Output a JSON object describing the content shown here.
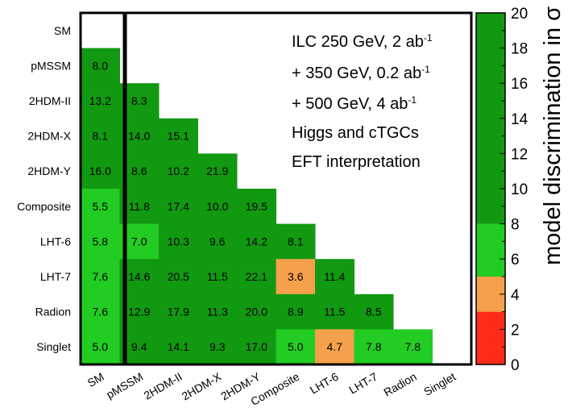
{
  "chart_data": {
    "type": "heatmap",
    "rows": [
      "SM",
      "pMSSM",
      "2HDM-II",
      "2HDM-X",
      "2HDM-Y",
      "Composite",
      "LHT-6",
      "LHT-7",
      "Radion",
      "Singlet"
    ],
    "columns": [
      "SM",
      "pMSSM",
      "2HDM-II",
      "2HDM-X",
      "2HDM-Y",
      "Composite",
      "LHT-6",
      "LHT-7",
      "Radion",
      "Singlet"
    ],
    "values": [
      [
        null,
        null,
        null,
        null,
        null,
        null,
        null,
        null,
        null,
        null
      ],
      [
        8.0,
        null,
        null,
        null,
        null,
        null,
        null,
        null,
        null,
        null
      ],
      [
        13.2,
        8.3,
        null,
        null,
        null,
        null,
        null,
        null,
        null,
        null
      ],
      [
        8.1,
        14.0,
        15.1,
        null,
        null,
        null,
        null,
        null,
        null,
        null
      ],
      [
        16.0,
        8.6,
        10.2,
        21.9,
        null,
        null,
        null,
        null,
        null,
        null
      ],
      [
        5.5,
        11.8,
        17.4,
        10.0,
        19.5,
        null,
        null,
        null,
        null,
        null
      ],
      [
        5.8,
        7.0,
        10.3,
        9.6,
        14.2,
        8.1,
        null,
        null,
        null,
        null
      ],
      [
        7.6,
        14.6,
        20.5,
        11.5,
        22.1,
        3.6,
        11.4,
        null,
        null,
        null
      ],
      [
        7.6,
        12.9,
        17.9,
        11.3,
        20.0,
        8.9,
        11.5,
        8.5,
        null,
        null
      ],
      [
        5.0,
        9.4,
        14.1,
        9.3,
        17.0,
        5.0,
        4.7,
        7.8,
        7.8,
        null
      ]
    ],
    "value_labels": [
      [
        null,
        null,
        null,
        null,
        null,
        null,
        null,
        null,
        null,
        null
      ],
      [
        "8.0",
        null,
        null,
        null,
        null,
        null,
        null,
        null,
        null,
        null
      ],
      [
        "13.2",
        "8.3",
        null,
        null,
        null,
        null,
        null,
        null,
        null,
        null
      ],
      [
        "8.1",
        "14.0",
        "15.1",
        null,
        null,
        null,
        null,
        null,
        null,
        null
      ],
      [
        "16.0",
        "8.6",
        "10.2",
        "21.9",
        null,
        null,
        null,
        null,
        null,
        null
      ],
      [
        "5.5",
        "11.8",
        "17.4",
        "10.0",
        "19.5",
        null,
        null,
        null,
        null,
        null
      ],
      [
        "5.8",
        "7.0",
        "10.3",
        "9.6",
        "14.2",
        "8.1",
        null,
        null,
        null,
        null
      ],
      [
        "7.6",
        "14.6",
        "20.5",
        "11.5",
        "22.1",
        "3.6",
        "11.4",
        null,
        null,
        null
      ],
      [
        "7.6",
        "12.9",
        "17.9",
        "11.3",
        "20.0",
        "8.9",
        "11.5",
        "8.5",
        null,
        null
      ],
      [
        "5.0",
        "9.4",
        "14.1",
        "9.3",
        "17.0",
        "5.0",
        "4.7",
        "7.8",
        "7.8",
        null
      ]
    ],
    "annotation": [
      "ILC 250 GeV, 2 ab",
      " + 350 GeV, 0.2 ab",
      " + 500 GeV,   4 ab",
      "Higgs and cTGCs",
      "EFT interpretation"
    ],
    "annotation_superscript": "-1",
    "colorbar": {
      "title": "model discrimination in σ",
      "range": [
        0,
        20
      ],
      "ticks": [
        "0",
        "2",
        "4",
        "6",
        "8",
        "10",
        "12",
        "14",
        "16",
        "18",
        "20"
      ],
      "bands": [
        {
          "from": 0,
          "to": 3,
          "color": "#ff2a1a"
        },
        {
          "from": 3,
          "to": 5,
          "color": "#f5a04a"
        },
        {
          "from": 5,
          "to": 8,
          "color": "#22cc22"
        },
        {
          "from": 8,
          "to": 20,
          "color": "#119911"
        }
      ]
    }
  }
}
